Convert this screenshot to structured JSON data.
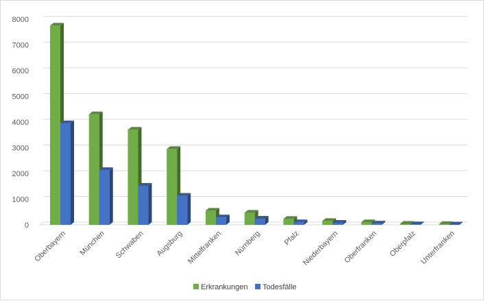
{
  "chart_data": {
    "type": "bar",
    "style": "3d-clustered-column",
    "title": "",
    "xlabel": "",
    "ylabel": "",
    "ylim": [
      0,
      8000
    ],
    "yticks": [
      0,
      1000,
      2000,
      3000,
      4000,
      5000,
      6000,
      7000,
      8000
    ],
    "grid": true,
    "legend_position": "bottom",
    "categories": [
      "Oberbayern",
      "München",
      "Schwaben",
      "Augsburg",
      "Mittelfranken",
      "Nürnberg",
      "Pfalz",
      "Niederbayern",
      "Oberfranken",
      "Oberpfalz",
      "Unterfranken"
    ],
    "series": [
      {
        "name": "Erkrankungen",
        "color": "#70ad47",
        "values": [
          7750,
          4300,
          3700,
          2950,
          550,
          470,
          230,
          150,
          100,
          40,
          30
        ]
      },
      {
        "name": "Todesfälle",
        "color": "#4472c4",
        "values": [
          3950,
          2130,
          1520,
          1130,
          290,
          240,
          100,
          80,
          50,
          20,
          15
        ]
      }
    ]
  }
}
